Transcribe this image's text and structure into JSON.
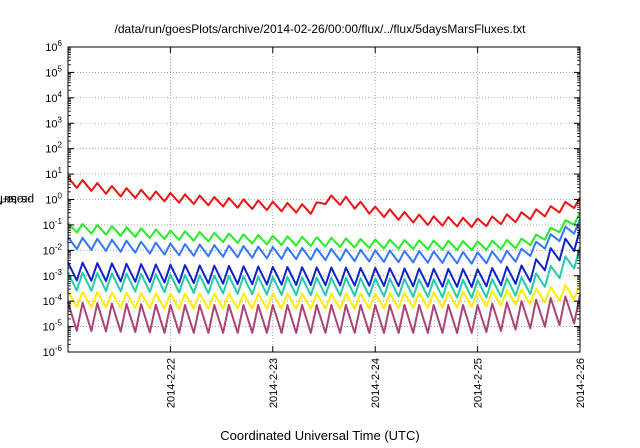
{
  "chart_data": {
    "type": "line",
    "title": "/data/run/goesPlots/archive/2014-02-26/00:00/flux/../flux/5daysMarsFluxes.txt",
    "xlabel": "Coordinated Universal Time (UTC)",
    "ylabel_base": "protons/cm",
    "ylabel_sup": "2",
    "ylabel_rest": "-s-sr-MeV",
    "yscale": "log",
    "ylim": [
      1e-06,
      1000000.0
    ],
    "xlim": [
      "2014-02-21T00:00",
      "2014-02-26T00:00"
    ],
    "grid": true,
    "y_ticks": [
      {
        "base": "10",
        "exp": "-6"
      },
      {
        "base": "10",
        "exp": "-5"
      },
      {
        "base": "10",
        "exp": "-4"
      },
      {
        "base": "10",
        "exp": "-3"
      },
      {
        "base": "10",
        "exp": "-2"
      },
      {
        "base": "10",
        "exp": "-1"
      },
      {
        "base": "10",
        "exp": "0"
      },
      {
        "base": "10",
        "exp": "1"
      },
      {
        "base": "10",
        "exp": "2"
      },
      {
        "base": "10",
        "exp": "3"
      },
      {
        "base": "10",
        "exp": "4"
      },
      {
        "base": "10",
        "exp": "5"
      },
      {
        "base": "10",
        "exp": "6"
      }
    ],
    "x_ticks": [
      "2014-2-22",
      "2014-2-23",
      "2014-2-24",
      "2014-2-25",
      "2014-2-26"
    ],
    "series": [
      {
        "color": "#ee1111",
        "baseline": [
          [
            0,
            5
          ],
          [
            0.5,
            2
          ],
          [
            1,
            1.2
          ],
          [
            1.5,
            0.8
          ],
          [
            2,
            0.55
          ],
          [
            2.4,
            0.4
          ],
          [
            2.5,
            1.0
          ],
          [
            2.7,
            0.9
          ],
          [
            3,
            0.35
          ],
          [
            3.5,
            0.15
          ],
          [
            4,
            0.12
          ],
          [
            4.4,
            0.2
          ],
          [
            4.7,
            0.35
          ],
          [
            5,
            0.8
          ]
        ],
        "amp": 0.35,
        "phase_frac": 0.6
      },
      {
        "color": "#22ee22",
        "baseline": [
          [
            0,
            0.08
          ],
          [
            1,
            0.04
          ],
          [
            2,
            0.025
          ],
          [
            3,
            0.018
          ],
          [
            4,
            0.015
          ],
          [
            4.4,
            0.018
          ],
          [
            4.6,
            0.03
          ],
          [
            5,
            0.2
          ]
        ],
        "amp": 0.35,
        "phase_frac": 0.6
      },
      {
        "color": "#3377ff",
        "baseline": [
          [
            0,
            0.02
          ],
          [
            1,
            0.011
          ],
          [
            2,
            0.008
          ],
          [
            3,
            0.006
          ],
          [
            4,
            0.005
          ],
          [
            4.4,
            0.006
          ],
          [
            4.6,
            0.015
          ],
          [
            5,
            0.1
          ]
        ],
        "amp": 0.45,
        "phase_frac": 0.6
      },
      {
        "color": "#1122cc",
        "baseline": [
          [
            0,
            0.0015
          ],
          [
            1,
            0.0012
          ],
          [
            2,
            0.001
          ],
          [
            3,
            0.0009
          ],
          [
            4,
            0.0008
          ],
          [
            4.5,
            0.0012
          ],
          [
            4.7,
            0.005
          ],
          [
            5,
            0.03
          ]
        ],
        "amp": 0.7,
        "phase_frac": 0.6
      },
      {
        "color": "#22ccaa",
        "baseline": [
          [
            0,
            0.0006
          ],
          [
            1,
            0.0005
          ],
          [
            2,
            0.0004
          ],
          [
            3,
            0.00035
          ],
          [
            4,
            0.0003
          ],
          [
            4.5,
            0.0004
          ],
          [
            4.7,
            0.001
          ],
          [
            5,
            0.006
          ]
        ],
        "amp": 0.7,
        "phase_frac": 0.6
      },
      {
        "color": "#ffee00",
        "baseline": [
          [
            0,
            0.00012
          ],
          [
            1,
            0.0001
          ],
          [
            2,
            0.0001
          ],
          [
            3,
            0.0001
          ],
          [
            4,
            0.00012
          ],
          [
            4.5,
            0.00015
          ],
          [
            5,
            0.00025
          ]
        ],
        "amp": 0.6,
        "phase_frac": 0.6
      },
      {
        "color": "#aa4477",
        "baseline": [
          [
            0,
            2.5e-05
          ],
          [
            1,
            2e-05
          ],
          [
            2,
            2e-05
          ],
          [
            3,
            2e-05
          ],
          [
            4,
            2e-05
          ],
          [
            4.5,
            3e-05
          ],
          [
            5,
            5e-05
          ]
        ],
        "amp": 1.1,
        "phase_frac": 0.6
      }
    ],
    "teeth_per_day": 7
  }
}
